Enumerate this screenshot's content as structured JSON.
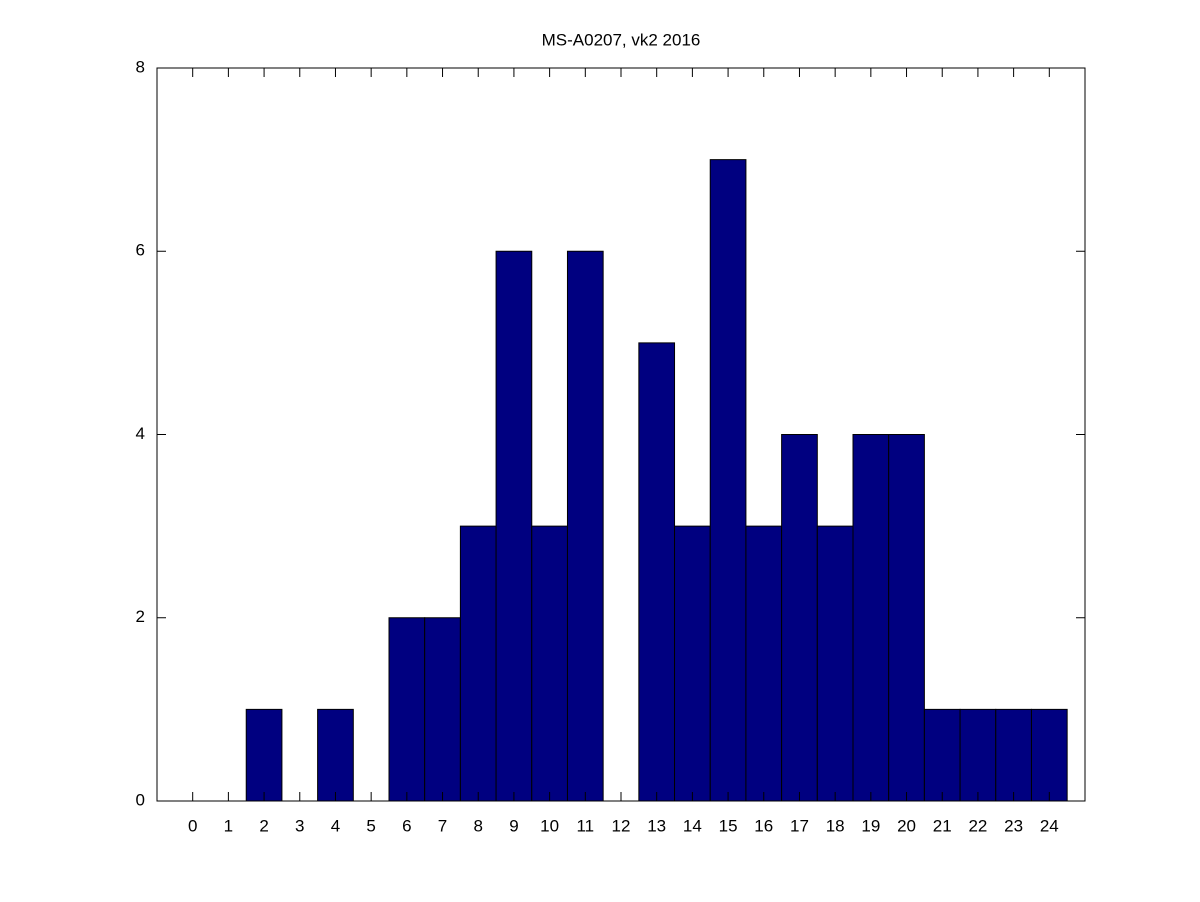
{
  "chart_data": {
    "type": "bar",
    "title": "MS-A0207, vk2 2016",
    "x": [
      0,
      1,
      2,
      3,
      4,
      5,
      6,
      7,
      8,
      9,
      10,
      11,
      12,
      13,
      14,
      15,
      16,
      17,
      18,
      19,
      20,
      21,
      22,
      23,
      24
    ],
    "values": [
      0,
      0,
      1,
      0,
      1,
      0,
      2,
      2,
      3,
      6,
      3,
      6,
      0,
      5,
      3,
      7,
      3,
      4,
      3,
      4,
      4,
      1,
      1,
      1,
      1
    ],
    "color": "#000080",
    "xlim": [
      -1,
      25
    ],
    "xticks": [
      0,
      1,
      2,
      3,
      4,
      5,
      6,
      7,
      8,
      9,
      10,
      11,
      12,
      13,
      14,
      15,
      16,
      17,
      18,
      19,
      20,
      21,
      22,
      23,
      24
    ],
    "ylim": [
      0,
      8
    ],
    "yticks": [
      0,
      2,
      4,
      6,
      8
    ],
    "grid": false
  }
}
